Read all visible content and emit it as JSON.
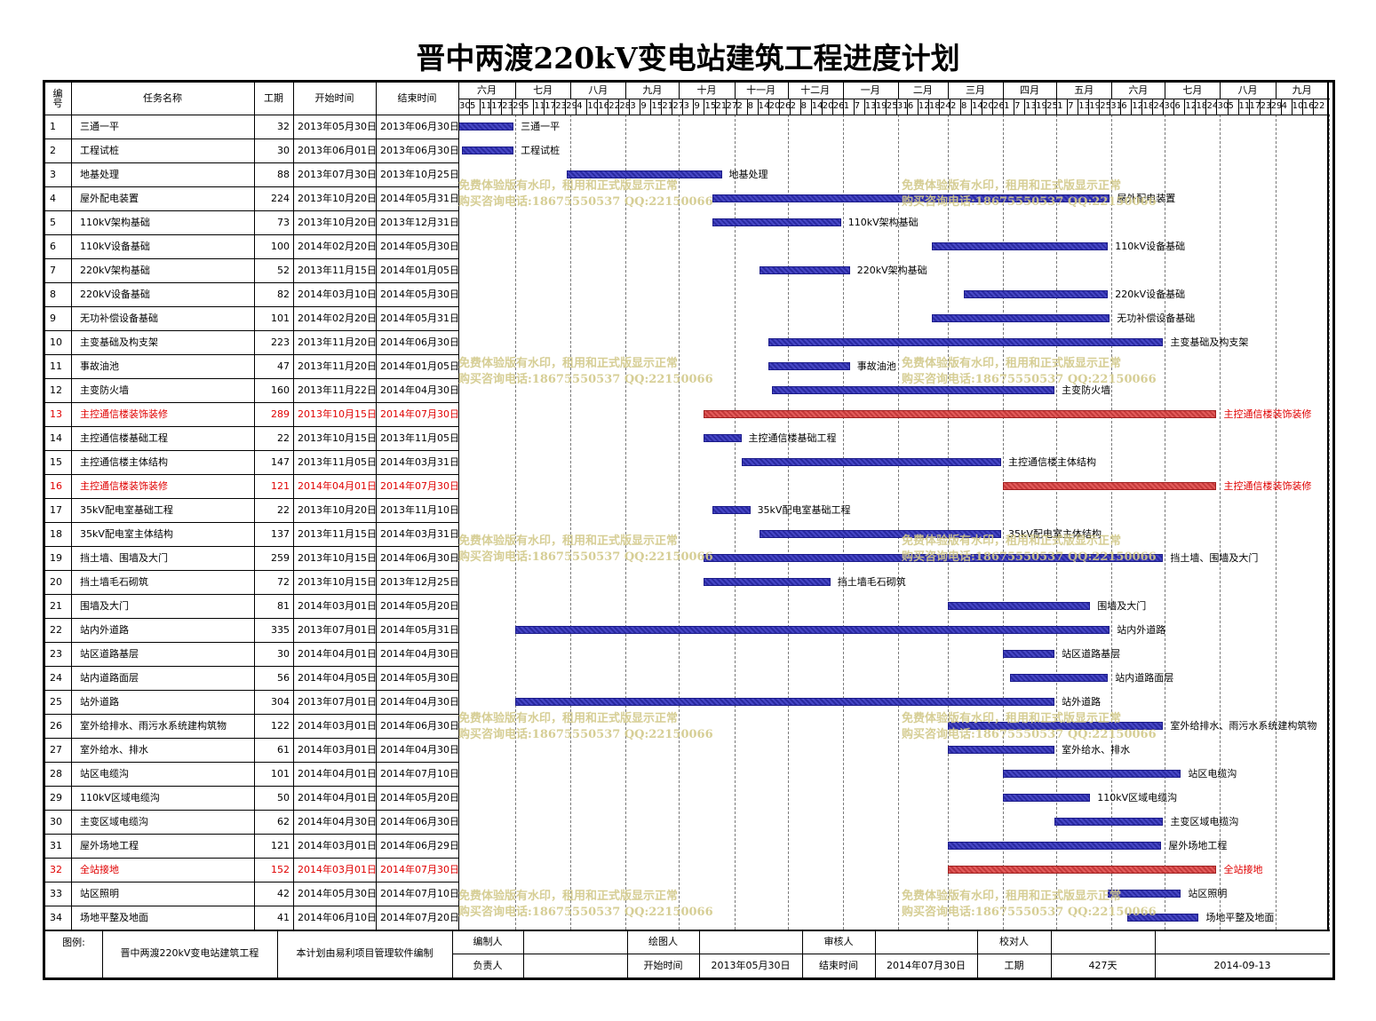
{
  "title": "晋中两渡220kV变电站建筑工程进度计划",
  "columns": {
    "no": "编号",
    "name": "任务名称",
    "duration": "工期",
    "start": "开始时间",
    "end": "结束时间"
  },
  "timeline": {
    "months": [
      "六月",
      "七月",
      "八月",
      "九月",
      "十月",
      "十一月",
      "十二月",
      "一月",
      "二月",
      "三月",
      "四月",
      "五月",
      "六月",
      "七月",
      "八月",
      "九月"
    ],
    "ticks": [
      "30",
      "5",
      "11",
      "17",
      "23",
      "29",
      "5",
      "11",
      "17",
      "23",
      "29",
      "4",
      "10",
      "16",
      "22",
      "28",
      "3",
      "9",
      "15",
      "21",
      "27",
      "3",
      "9",
      "15",
      "21",
      "27",
      "2",
      "8",
      "14",
      "20",
      "26",
      "2",
      "8",
      "14",
      "20",
      "26",
      "1",
      "7",
      "13",
      "19",
      "25",
      "31",
      "6",
      "12",
      "18",
      "24",
      "2",
      "8",
      "14",
      "20",
      "26",
      "1",
      "7",
      "13",
      "19",
      "25",
      "1",
      "7",
      "13",
      "19",
      "25",
      "31",
      "6",
      "12",
      "18",
      "24",
      "30",
      "6",
      "12",
      "18",
      "24",
      "30",
      "5",
      "11",
      "17",
      "23",
      "29",
      "4",
      "10",
      "16",
      "22"
    ]
  },
  "tasks": [
    {
      "no": "1",
      "name": "三通一平",
      "duration": "32",
      "start": "2013年05月30日",
      "end": "2013年06月30日",
      "critical": false
    },
    {
      "no": "2",
      "name": "工程试桩",
      "duration": "30",
      "start": "2013年06月01日",
      "end": "2013年06月30日",
      "critical": false
    },
    {
      "no": "3",
      "name": "地基处理",
      "duration": "88",
      "start": "2013年07月30日",
      "end": "2013年10月25日",
      "critical": false
    },
    {
      "no": "4",
      "name": "屋外配电装置",
      "duration": "224",
      "start": "2013年10月20日",
      "end": "2014年05月31日",
      "critical": false
    },
    {
      "no": "5",
      "name": "110kV架构基础",
      "duration": "73",
      "start": "2013年10月20日",
      "end": "2013年12月31日",
      "critical": false
    },
    {
      "no": "6",
      "name": "110kV设备基础",
      "duration": "100",
      "start": "2014年02月20日",
      "end": "2014年05月30日",
      "critical": false
    },
    {
      "no": "7",
      "name": "220kV架构基础",
      "duration": "52",
      "start": "2013年11月15日",
      "end": "2014年01月05日",
      "critical": false
    },
    {
      "no": "8",
      "name": "220kV设备基础",
      "duration": "82",
      "start": "2014年03月10日",
      "end": "2014年05月30日",
      "critical": false
    },
    {
      "no": "9",
      "name": "无功补偿设备基础",
      "duration": "101",
      "start": "2014年02月20日",
      "end": "2014年05月31日",
      "critical": false
    },
    {
      "no": "10",
      "name": "主变基础及构支架",
      "duration": "223",
      "start": "2013年11月20日",
      "end": "2014年06月30日",
      "critical": false
    },
    {
      "no": "11",
      "name": "事故油池",
      "duration": "47",
      "start": "2013年11月20日",
      "end": "2014年01月05日",
      "critical": false
    },
    {
      "no": "12",
      "name": "主变防火墙",
      "duration": "160",
      "start": "2013年11月22日",
      "end": "2014年04月30日",
      "critical": false
    },
    {
      "no": "13",
      "name": "主控通信楼装饰装修",
      "duration": "289",
      "start": "2013年10月15日",
      "end": "2014年07月30日",
      "critical": true
    },
    {
      "no": "14",
      "name": "主控通信楼基础工程",
      "duration": "22",
      "start": "2013年10月15日",
      "end": "2013年11月05日",
      "critical": false
    },
    {
      "no": "15",
      "name": "主控通信楼主体结构",
      "duration": "147",
      "start": "2013年11月05日",
      "end": "2014年03月31日",
      "critical": false
    },
    {
      "no": "16",
      "name": "主控通信楼装饰装修",
      "duration": "121",
      "start": "2014年04月01日",
      "end": "2014年07月30日",
      "critical": true
    },
    {
      "no": "17",
      "name": "35kV配电室基础工程",
      "duration": "22",
      "start": "2013年10月20日",
      "end": "2013年11月10日",
      "critical": false
    },
    {
      "no": "18",
      "name": "35kV配电室主体结构",
      "duration": "137",
      "start": "2013年11月15日",
      "end": "2014年03月31日",
      "critical": false
    },
    {
      "no": "19",
      "name": "挡土墙、围墙及大门",
      "duration": "259",
      "start": "2013年10月15日",
      "end": "2014年06月30日",
      "critical": false
    },
    {
      "no": "20",
      "name": "挡土墙毛石砌筑",
      "duration": "72",
      "start": "2013年10月15日",
      "end": "2013年12月25日",
      "critical": false
    },
    {
      "no": "21",
      "name": "围墙及大门",
      "duration": "81",
      "start": "2014年03月01日",
      "end": "2014年05月20日",
      "critical": false
    },
    {
      "no": "22",
      "name": "站内外道路",
      "duration": "335",
      "start": "2013年07月01日",
      "end": "2014年05月31日",
      "critical": false
    },
    {
      "no": "23",
      "name": "站区道路基层",
      "duration": "30",
      "start": "2014年04月01日",
      "end": "2014年04月30日",
      "critical": false
    },
    {
      "no": "24",
      "name": "站内道路面层",
      "duration": "56",
      "start": "2014年04月05日",
      "end": "2014年05月30日",
      "critical": false
    },
    {
      "no": "25",
      "name": "站外道路",
      "duration": "304",
      "start": "2013年07月01日",
      "end": "2014年04月30日",
      "critical": false
    },
    {
      "no": "26",
      "name": "室外给排水、雨污水系统建构筑物",
      "duration": "122",
      "start": "2014年03月01日",
      "end": "2014年06月30日",
      "critical": false
    },
    {
      "no": "27",
      "name": "室外给水、排水",
      "duration": "61",
      "start": "2014年03月01日",
      "end": "2014年04月30日",
      "critical": false
    },
    {
      "no": "28",
      "name": "站区电缆沟",
      "duration": "101",
      "start": "2014年04月01日",
      "end": "2014年07月10日",
      "critical": false
    },
    {
      "no": "29",
      "name": "110kV区域电缆沟",
      "duration": "50",
      "start": "2014年04月01日",
      "end": "2014年05月20日",
      "critical": false
    },
    {
      "no": "30",
      "name": "主变区域电缆沟",
      "duration": "62",
      "start": "2014年04月30日",
      "end": "2014年06月30日",
      "critical": false
    },
    {
      "no": "31",
      "name": "屋外场地工程",
      "duration": "121",
      "start": "2014年03月01日",
      "end": "2014年06月29日",
      "critical": false
    },
    {
      "no": "32",
      "name": "全站接地",
      "duration": "152",
      "start": "2014年03月01日",
      "end": "2014年07月30日",
      "critical": true
    },
    {
      "no": "33",
      "name": "站区照明",
      "duration": "42",
      "start": "2014年05月30日",
      "end": "2014年07月10日",
      "critical": false
    },
    {
      "no": "34",
      "name": "场地平整及地面",
      "duration": "41",
      "start": "2014年06月10日",
      "end": "2014年07月20日",
      "critical": false
    }
  ],
  "footer": {
    "legend_label": "图例:",
    "project_name": "晋中两渡220kV变电站建筑工程",
    "software_note": "本计划由易利项目管理软件编制",
    "editor_label": "编制人",
    "drawer_label": "绘图人",
    "reviewer_label": "审核人",
    "checker_label": "校对人",
    "owner_label": "负责人",
    "start_label": "开始时间",
    "start_value": "2013年05月30日",
    "end_label": "结束时间",
    "end_value": "2014年07月30日",
    "duration_label": "工期",
    "duration_value": "427天",
    "print_date": "2014-09-13"
  },
  "watermark": {
    "line1": "免费体验版有水印，租用和正式版显示正常",
    "line2": "购买咨询电话:18675550537 QQ:22150066"
  },
  "colors": {
    "normal_bar": "#3a3ab4",
    "critical_bar": "#d94a4a",
    "critical_text": "#e00000",
    "watermark": "#d2c98a"
  }
}
